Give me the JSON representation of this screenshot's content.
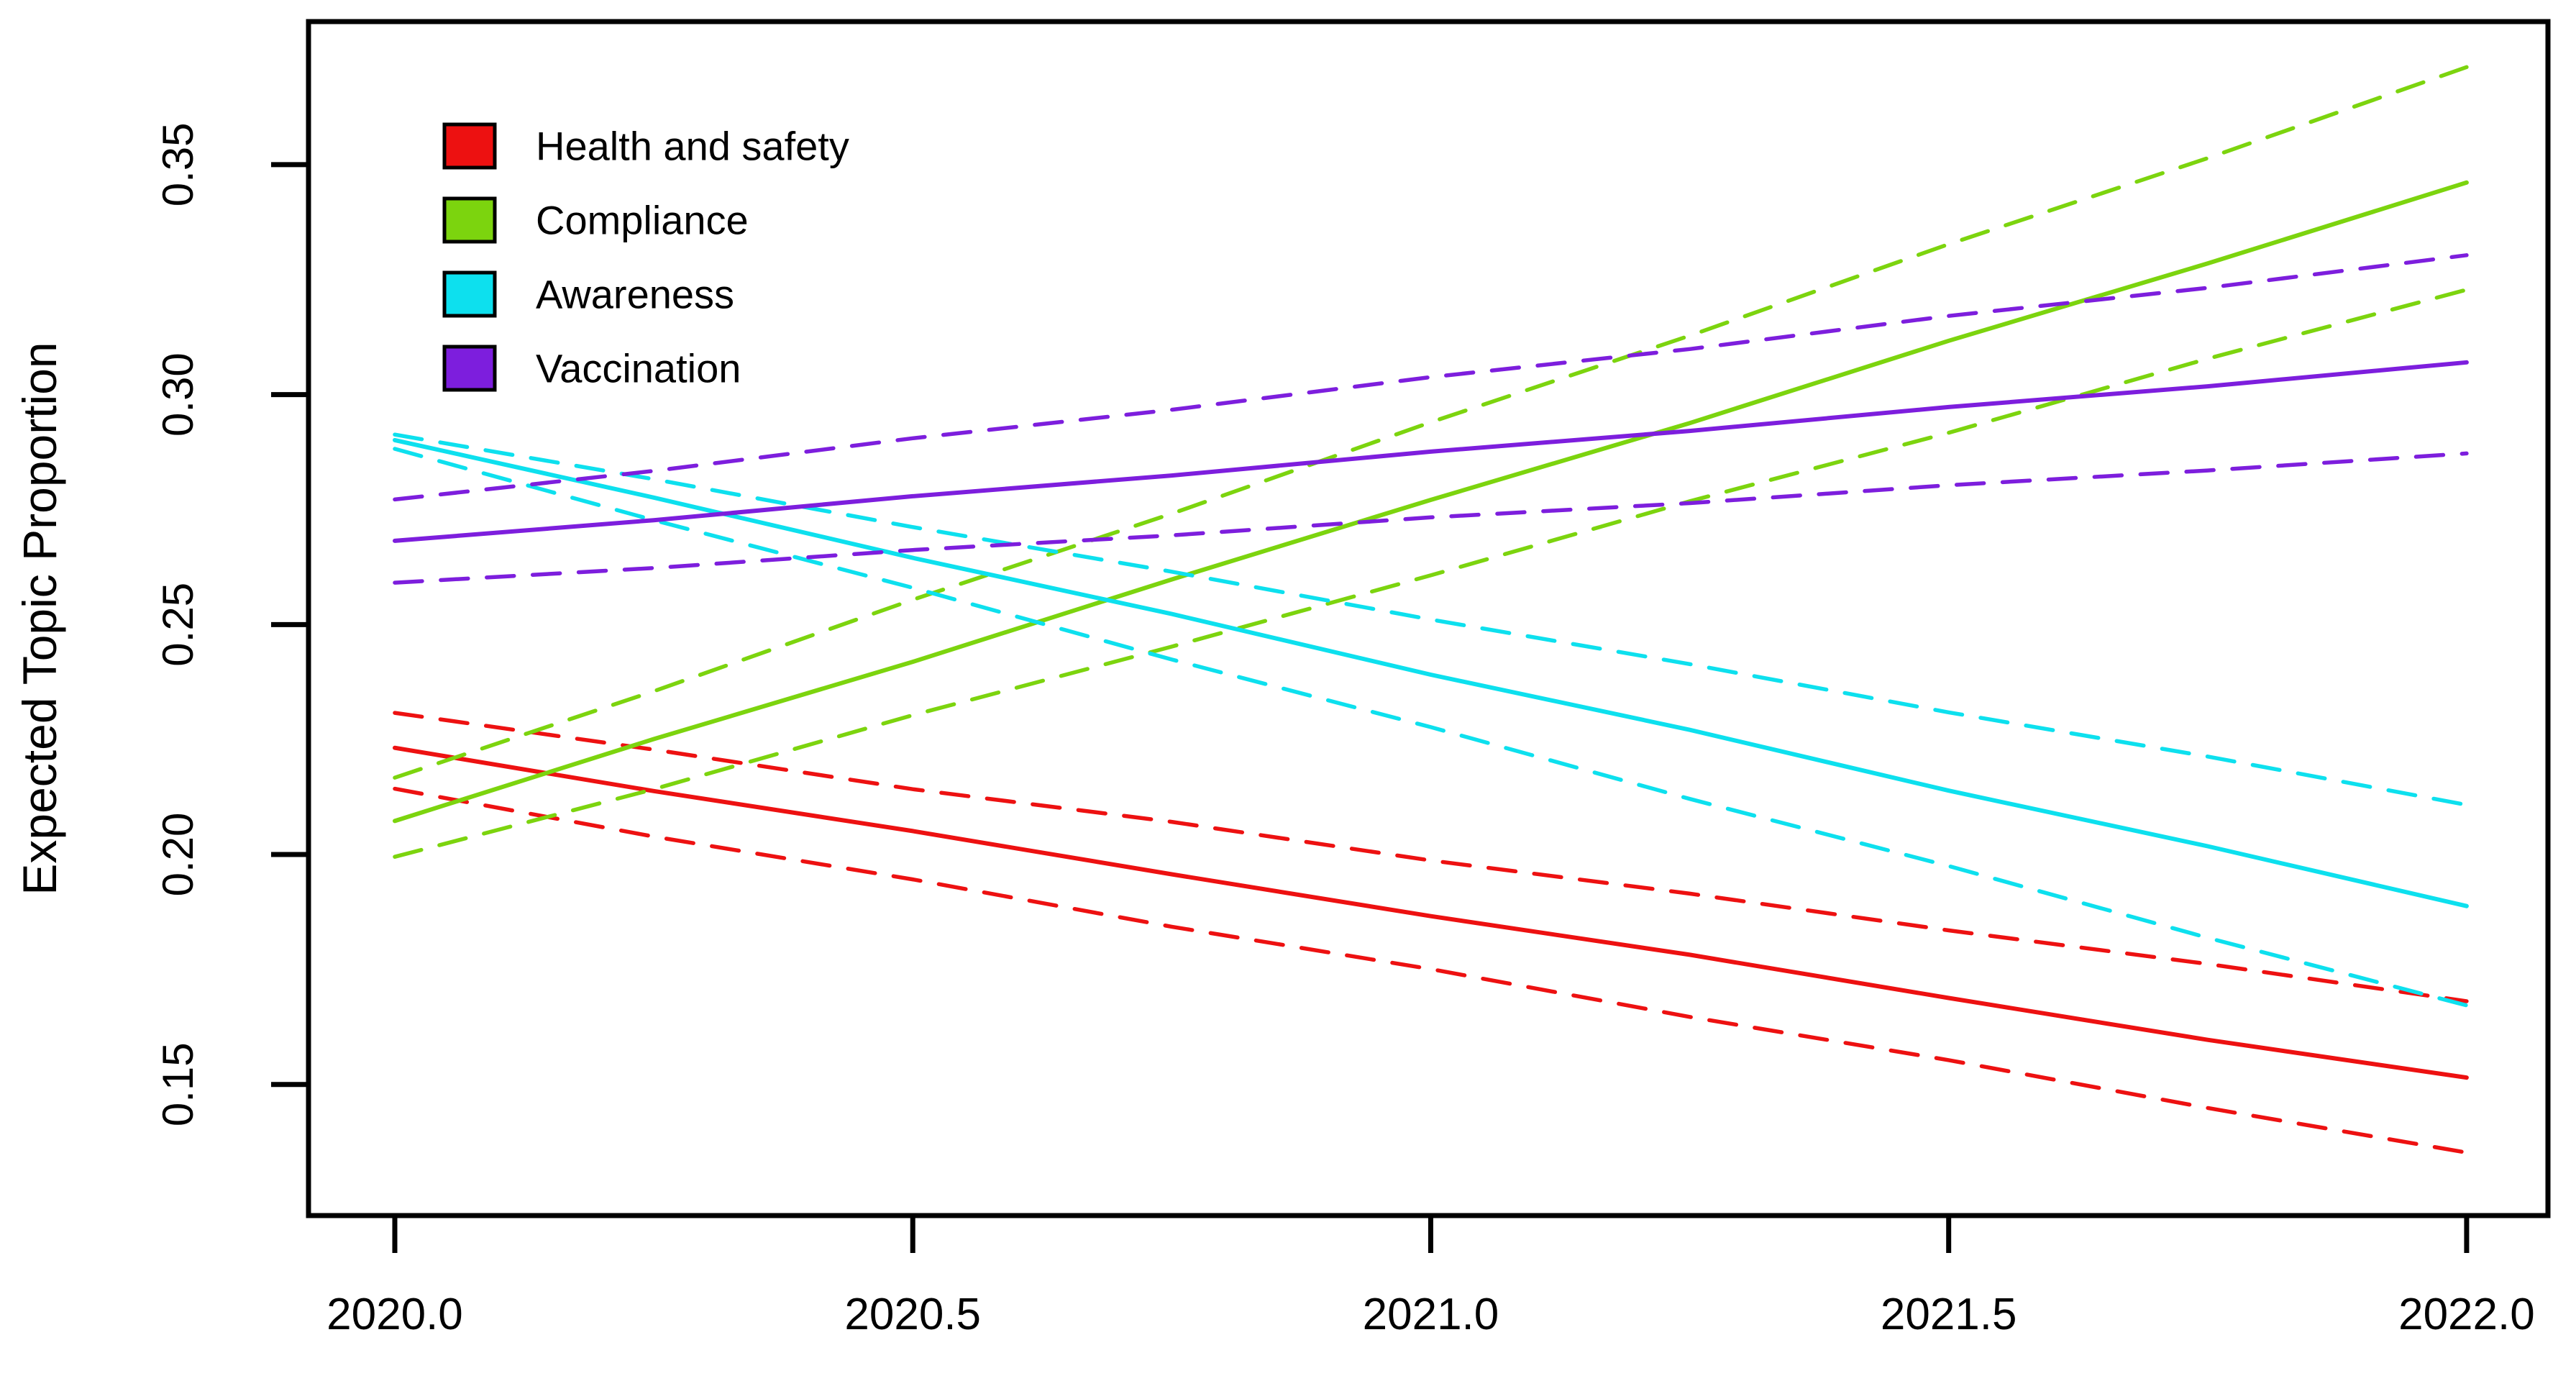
{
  "figure": {
    "background": "#ffffff",
    "frame_color": "#000000",
    "text_color": "#000000"
  },
  "chart_data": {
    "type": "line",
    "title": "",
    "xlabel": "",
    "ylabel": "Expected Topic Proportion",
    "xlim": [
      2019.9167,
      2022.0785
    ],
    "ylim": [
      0.1215,
      0.3811
    ],
    "grid": false,
    "legend_position": "top-left",
    "x_ticks": [
      {
        "value": 2020.0,
        "label": "2020.0"
      },
      {
        "value": 2020.5,
        "label": "2020.5"
      },
      {
        "value": 2021.0,
        "label": "2021.0"
      },
      {
        "value": 2021.5,
        "label": "2021.5"
      },
      {
        "value": 2022.0,
        "label": "2022.0"
      }
    ],
    "y_ticks": [
      {
        "value": 0.15,
        "label": "0.15"
      },
      {
        "value": 0.2,
        "label": "0.20"
      },
      {
        "value": 0.25,
        "label": "0.25"
      },
      {
        "value": 0.3,
        "label": "0.30"
      },
      {
        "value": 0.35,
        "label": "0.35"
      }
    ],
    "x": [
      2020.0,
      2020.25,
      2020.5,
      2020.75,
      2021.0,
      2021.25,
      2021.5,
      2021.75,
      2022.0
    ],
    "series": [
      {
        "name": "Health and safety",
        "color": "#ED1111",
        "line_style": "solid",
        "ci_style": "dashed",
        "est": [
          0.2232,
          0.2138,
          0.2051,
          0.1957,
          0.1866,
          0.1782,
          0.1688,
          0.1597,
          0.1515
        ],
        "upper": [
          0.2308,
          0.2228,
          0.2142,
          0.2071,
          0.1987,
          0.1915,
          0.1835,
          0.1762,
          0.1681
        ],
        "lower": [
          0.2143,
          0.2039,
          0.1946,
          0.1843,
          0.1751,
          0.1647,
          0.1553,
          0.1449,
          0.1352
        ]
      },
      {
        "name": "Compliance",
        "color": "#7CD40E",
        "line_style": "solid",
        "ci_style": "dashed",
        "est": [
          0.2073,
          0.2251,
          0.2419,
          0.2598,
          0.2771,
          0.2938,
          0.3117,
          0.3285,
          0.3461
        ],
        "upper": [
          0.2167,
          0.2355,
          0.2554,
          0.2741,
          0.294,
          0.3128,
          0.3327,
          0.3514,
          0.3712
        ],
        "lower": [
          0.1995,
          0.2142,
          0.2303,
          0.2452,
          0.2607,
          0.2768,
          0.2917,
          0.3078,
          0.3228
        ]
      },
      {
        "name": "Awareness",
        "color": "#0DE0EE",
        "line_style": "solid",
        "ci_style": "dashed",
        "est": [
          0.2901,
          0.2776,
          0.2645,
          0.2523,
          0.2391,
          0.2271,
          0.2139,
          0.2018,
          0.1888
        ],
        "upper": [
          0.2913,
          0.2816,
          0.2712,
          0.2615,
          0.2511,
          0.2414,
          0.2309,
          0.2213,
          0.2108
        ],
        "lower": [
          0.2882,
          0.2727,
          0.258,
          0.2424,
          0.2277,
          0.2121,
          0.1975,
          0.1819,
          0.1672
        ]
      },
      {
        "name": "Vaccination",
        "color": "#7D1EDD",
        "line_style": "solid",
        "ci_style": "dashed",
        "est": [
          0.2682,
          0.2727,
          0.2779,
          0.2824,
          0.2876,
          0.2921,
          0.2973,
          0.3018,
          0.307
        ],
        "upper": [
          0.2772,
          0.2834,
          0.2905,
          0.2967,
          0.3038,
          0.3099,
          0.3171,
          0.3232,
          0.3303
        ],
        "lower": [
          0.2591,
          0.2623,
          0.2662,
          0.2694,
          0.2733,
          0.2764,
          0.2803,
          0.2835,
          0.2872
        ]
      }
    ]
  }
}
